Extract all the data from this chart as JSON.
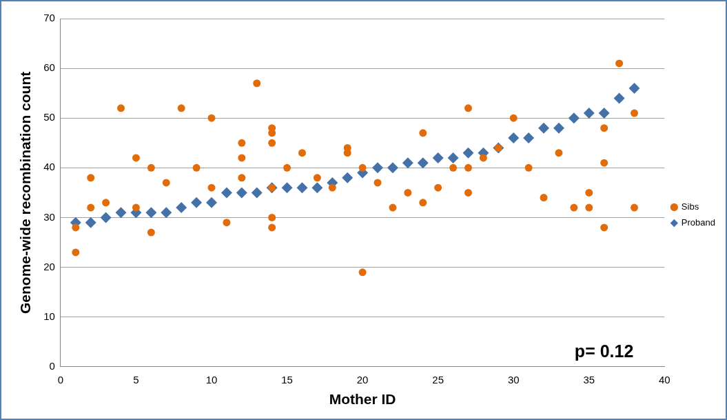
{
  "chart_data": {
    "type": "scatter",
    "xlabel": "Mother ID",
    "ylabel": "Genome-wide recombination count",
    "xlim": [
      0,
      40
    ],
    "xticks": [
      0,
      5,
      10,
      15,
      20,
      25,
      30,
      35,
      40
    ],
    "ylim": [
      0,
      70
    ],
    "yticks": [
      0,
      10,
      20,
      30,
      40,
      50,
      60,
      70
    ],
    "grid": "y",
    "legend": "right",
    "annotations": [
      "p= 0.12"
    ],
    "series": [
      {
        "name": "Proband",
        "color": "#4472a8",
        "marker": "diamond",
        "x": [
          1,
          2,
          3,
          4,
          5,
          6,
          7,
          8,
          9,
          10,
          11,
          12,
          13,
          14,
          15,
          16,
          17,
          18,
          19,
          20,
          21,
          22,
          23,
          24,
          25,
          26,
          27,
          28,
          29,
          30,
          31,
          32,
          33,
          34,
          35,
          36,
          37,
          38
        ],
        "values": [
          29,
          29,
          30,
          31,
          31,
          31,
          31,
          32,
          33,
          33,
          35,
          35,
          35,
          36,
          36,
          36,
          36,
          37,
          38,
          39,
          40,
          40,
          41,
          41,
          42,
          42,
          43,
          43,
          44,
          46,
          46,
          48,
          48,
          50,
          51,
          51,
          54,
          56
        ]
      },
      {
        "name": "Sibs",
        "color": "#e36c0a",
        "marker": "circle",
        "x": [
          1,
          1,
          2,
          2,
          3,
          4,
          5,
          5,
          6,
          6,
          7,
          8,
          9,
          10,
          10,
          11,
          12,
          12,
          12,
          13,
          14,
          14,
          14,
          14,
          14,
          14,
          15,
          16,
          17,
          18,
          19,
          19,
          20,
          20,
          21,
          22,
          23,
          24,
          24,
          25,
          26,
          27,
          27,
          27,
          28,
          29,
          30,
          31,
          32,
          33,
          34,
          35,
          35,
          36,
          36,
          36,
          37,
          38,
          38
        ],
        "values": [
          28,
          23,
          38,
          32,
          33,
          52,
          42,
          32,
          40,
          27,
          37,
          52,
          40,
          50,
          36,
          29,
          45,
          42,
          38,
          57,
          48,
          47,
          45,
          36,
          30,
          28,
          40,
          43,
          38,
          36,
          44,
          43,
          40,
          19,
          37,
          32,
          35,
          47,
          33,
          36,
          40,
          52,
          40,
          35,
          42,
          44,
          50,
          40,
          34,
          43,
          32,
          35,
          32,
          48,
          41,
          28,
          61,
          51,
          32
        ]
      }
    ]
  }
}
